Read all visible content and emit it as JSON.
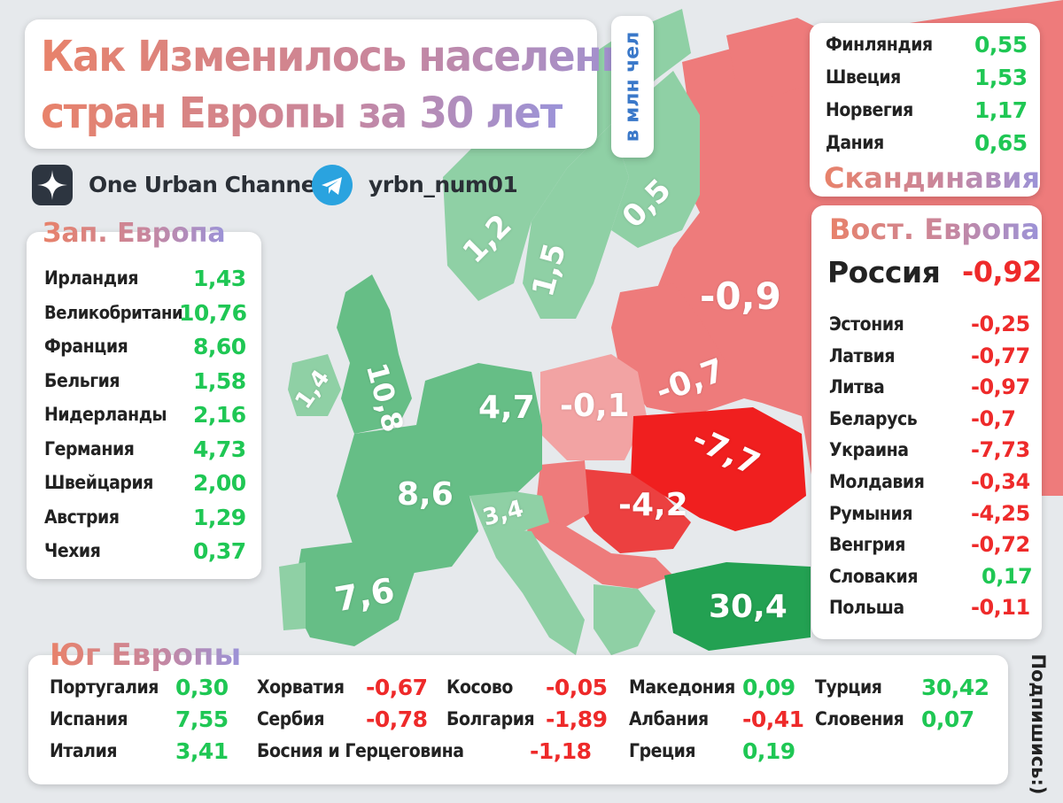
{
  "title": {
    "line1": "Как Изменилось население",
    "line2": "стран Европы за 30 лет"
  },
  "unit_label": "в млн чел",
  "channels": {
    "zen_name": "One Urban Channel",
    "zen_icon": "zen-star-icon",
    "telegram_name": "yrbn_num01",
    "telegram_icon": "telegram-plane-icon"
  },
  "side_note": "Подпишись:)",
  "colors": {
    "growth_light": "#8fd0a5",
    "growth": "#66be86",
    "growth_dark": "#3aa664",
    "turkey": "#23a152",
    "decline_light": "#f2a3a3",
    "decline": "#ee7b7b",
    "decline_dark": "#ec4040",
    "ukraine": "#f01f1f",
    "value_positive": "#1fc754",
    "value_negative": "#ee2a2a"
  },
  "map_labels": [
    {
      "id": "norway",
      "text": "1,2",
      "change": 1.2
    },
    {
      "id": "sweden",
      "text": "1,5",
      "change": 1.5
    },
    {
      "id": "finland",
      "text": "0,5",
      "change": 0.5
    },
    {
      "id": "russia",
      "text": "-0,9",
      "change": -0.9
    },
    {
      "id": "ireland",
      "text": "1,4",
      "change": 1.4
    },
    {
      "id": "uk",
      "text": "10,8",
      "change": 10.8
    },
    {
      "id": "germany",
      "text": "4,7",
      "change": 4.7
    },
    {
      "id": "poland",
      "text": "-0,1",
      "change": -0.1
    },
    {
      "id": "belarus",
      "text": "-0,7",
      "change": -0.7
    },
    {
      "id": "ukraine",
      "text": "-7,7",
      "change": -7.7
    },
    {
      "id": "romania",
      "text": "-4,2",
      "change": -4.2
    },
    {
      "id": "france",
      "text": "8,6",
      "change": 8.6
    },
    {
      "id": "italy",
      "text": "3,4",
      "change": 3.4
    },
    {
      "id": "spain",
      "text": "7,6",
      "change": 7.6
    },
    {
      "id": "turkey",
      "text": "30,4",
      "change": 30.4
    }
  ],
  "regions": {
    "west": {
      "title": "Зап. Европа",
      "items": [
        {
          "name": "Ирландия",
          "value": "1,43",
          "sign": "pos"
        },
        {
          "name": "Великобритани",
          "value": "10,76",
          "sign": "pos"
        },
        {
          "name": "Франция",
          "value": "8,60",
          "sign": "pos"
        },
        {
          "name": "Бельгия",
          "value": "1,58",
          "sign": "pos"
        },
        {
          "name": "Нидерланды",
          "value": "2,16",
          "sign": "pos"
        },
        {
          "name": "Германия",
          "value": "4,73",
          "sign": "pos"
        },
        {
          "name": "Швейцария",
          "value": "2,00",
          "sign": "pos"
        },
        {
          "name": "Австрия",
          "value": "1,29",
          "sign": "pos"
        },
        {
          "name": "Чехия",
          "value": "0,37",
          "sign": "pos"
        }
      ]
    },
    "scandinavia": {
      "title": "Скандинавия",
      "items": [
        {
          "name": "Финляндия",
          "value": "0,55",
          "sign": "pos"
        },
        {
          "name": "Швеция",
          "value": "1,53",
          "sign": "pos"
        },
        {
          "name": "Норвегия",
          "value": "1,17",
          "sign": "pos"
        },
        {
          "name": "Дания",
          "value": "0,65",
          "sign": "pos"
        }
      ]
    },
    "east": {
      "title": "Вост. Европа",
      "russia": {
        "name": "Россия",
        "value": "-0,92",
        "sign": "neg"
      },
      "items": [
        {
          "name": "Эстония",
          "value": "-0,25",
          "sign": "neg"
        },
        {
          "name": "Латвия",
          "value": "-0,77",
          "sign": "neg"
        },
        {
          "name": "Литва",
          "value": "-0,97",
          "sign": "neg"
        },
        {
          "name": "Беларусь",
          "value": "-0,7",
          "sign": "neg"
        },
        {
          "name": "Украина",
          "value": "-7,73",
          "sign": "neg"
        },
        {
          "name": "Молдавия",
          "value": "-0,34",
          "sign": "neg"
        },
        {
          "name": "Румыния",
          "value": "-4,25",
          "sign": "neg"
        },
        {
          "name": "Венгрия",
          "value": "-0,72",
          "sign": "neg"
        },
        {
          "name": "Словакия",
          "value": "0,17",
          "sign": "pos"
        },
        {
          "name": "Польша",
          "value": "-0,11",
          "sign": "neg"
        }
      ]
    },
    "south": {
      "title": "Юг Европы",
      "col1": [
        {
          "name": "Португалия",
          "value": "0,30",
          "sign": "pos"
        },
        {
          "name": "Испания",
          "value": "7,55",
          "sign": "pos"
        },
        {
          "name": "Италия",
          "value": "3,41",
          "sign": "pos"
        }
      ],
      "col2": [
        {
          "name": "Хорватия",
          "value": "-0,67",
          "sign": "neg"
        },
        {
          "name": "Сербия",
          "value": "-0,78",
          "sign": "neg"
        },
        {
          "name": "Босния и Герцеговина",
          "value": "-1,18",
          "sign": "neg"
        }
      ],
      "col3": [
        {
          "name": "Косово",
          "value": "-0,05",
          "sign": "neg"
        },
        {
          "name": "Болгария",
          "value": "-1,89",
          "sign": "neg"
        }
      ],
      "col4": [
        {
          "name": "Македония",
          "value": "0,09",
          "sign": "pos"
        },
        {
          "name": "Албания",
          "value": "-0,41",
          "sign": "neg"
        },
        {
          "name": "Греция",
          "value": "0,19",
          "sign": "pos"
        }
      ],
      "col5": [
        {
          "name": "Турция",
          "value": "30,42",
          "sign": "pos"
        },
        {
          "name": "Словения",
          "value": "0,07",
          "sign": "pos"
        }
      ]
    }
  }
}
